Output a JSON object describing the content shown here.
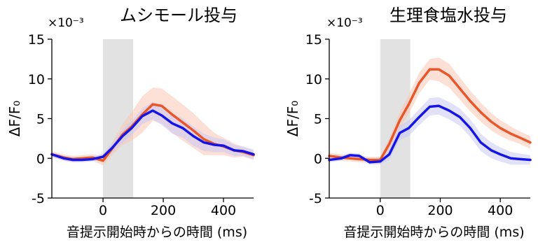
{
  "chart_data": [
    {
      "type": "line",
      "title": "ムシモール投与",
      "xlabel": "音提示開始時からの時間 (ms)",
      "ylabel": "ΔF/F₀",
      "yscale_label": "×10⁻³",
      "xlim": [
        -170,
        500
      ],
      "ylim": [
        -5,
        15
      ],
      "xticks": [
        0,
        200,
        400
      ],
      "yticks": [
        -5,
        0,
        5,
        10,
        15
      ],
      "stimulus_window": [
        0,
        100
      ],
      "grid": false,
      "series": [
        {
          "color": "#e8572a",
          "band_color": "#f9c7b5",
          "x": [
            -170,
            -130,
            -100,
            -70,
            -35,
            0,
            30,
            65,
            95,
            130,
            165,
            195,
            230,
            265,
            300,
            335,
            370,
            400,
            435,
            465,
            500
          ],
          "y": [
            0.5,
            0.1,
            -0.1,
            0.0,
            0.1,
            -0.3,
            1.2,
            3.0,
            4.0,
            5.5,
            6.8,
            6.6,
            5.5,
            4.5,
            3.5,
            2.4,
            1.8,
            1.5,
            1.0,
            0.8,
            0.4
          ],
          "upper": [
            0.9,
            0.5,
            0.3,
            0.4,
            0.5,
            0.3,
            2.0,
            4.3,
            5.8,
            7.8,
            8.9,
            8.8,
            7.8,
            6.8,
            5.7,
            4.4,
            3.2,
            2.6,
            1.9,
            1.4,
            1.0
          ],
          "lower": [
            0.1,
            -0.3,
            -0.5,
            -0.4,
            -0.3,
            -0.9,
            0.4,
            1.7,
            2.2,
            3.2,
            4.7,
            4.4,
            3.2,
            2.2,
            1.3,
            0.4,
            0.4,
            0.4,
            0.1,
            0.2,
            -0.2
          ]
        },
        {
          "color": "#1414e6",
          "band_color": "#c9c9f5",
          "x": [
            -170,
            -130,
            -100,
            -70,
            -35,
            0,
            30,
            65,
            95,
            130,
            165,
            195,
            230,
            265,
            300,
            335,
            370,
            400,
            435,
            465,
            500
          ],
          "y": [
            0.5,
            0.0,
            -0.2,
            -0.2,
            -0.1,
            0.2,
            1.3,
            2.8,
            3.8,
            5.3,
            6.0,
            5.4,
            4.4,
            3.8,
            2.8,
            2.0,
            1.7,
            1.6,
            1.0,
            0.9,
            0.5
          ],
          "upper": [
            0.8,
            0.3,
            0.1,
            0.1,
            0.2,
            0.6,
            1.9,
            3.6,
            4.7,
            6.3,
            7.1,
            6.6,
            5.7,
            5.0,
            4.0,
            3.1,
            2.6,
            2.4,
            1.7,
            1.5,
            1.1
          ],
          "lower": [
            0.2,
            -0.3,
            -0.5,
            -0.5,
            -0.4,
            -0.2,
            0.7,
            2.0,
            2.9,
            4.3,
            4.9,
            4.2,
            3.1,
            2.6,
            1.6,
            0.9,
            0.8,
            0.8,
            0.3,
            0.3,
            -0.1
          ]
        }
      ]
    },
    {
      "type": "line",
      "title": "生理食塩水投与",
      "xlabel": "音提示開始時からの時間 (ms)",
      "ylabel": "ΔF/F₀",
      "yscale_label": "×10⁻³",
      "xlim": [
        -170,
        500
      ],
      "ylim": [
        -5,
        15
      ],
      "xticks": [
        0,
        200,
        400
      ],
      "yticks": [
        -5,
        0,
        5,
        10,
        15
      ],
      "stimulus_window": [
        0,
        100
      ],
      "grid": false,
      "series": [
        {
          "color": "#e8572a",
          "band_color": "#f9c7b5",
          "x": [
            -170,
            -130,
            -100,
            -70,
            -35,
            0,
            30,
            65,
            95,
            130,
            165,
            195,
            230,
            265,
            300,
            335,
            370,
            400,
            435,
            465,
            500
          ],
          "y": [
            0.3,
            0.1,
            0.0,
            -0.1,
            -0.2,
            -0.2,
            1.8,
            4.8,
            6.8,
            9.5,
            11.2,
            11.2,
            10.4,
            8.8,
            7.2,
            5.8,
            4.6,
            3.8,
            3.1,
            2.6,
            2.0
          ],
          "upper": [
            0.7,
            0.5,
            0.4,
            0.3,
            0.2,
            0.2,
            2.5,
            5.8,
            8.0,
            10.8,
            12.5,
            12.7,
            11.9,
            10.2,
            8.5,
            7.0,
            5.7,
            4.8,
            4.0,
            3.4,
            2.8
          ],
          "lower": [
            -0.1,
            -0.3,
            -0.4,
            -0.5,
            -0.6,
            -0.6,
            1.1,
            3.8,
            5.6,
            8.2,
            9.9,
            9.7,
            8.9,
            7.4,
            5.9,
            4.6,
            3.5,
            2.8,
            2.2,
            1.8,
            1.2
          ]
        },
        {
          "color": "#1414e6",
          "band_color": "#c9c9f5",
          "x": [
            -170,
            -130,
            -100,
            -70,
            -35,
            0,
            30,
            65,
            95,
            130,
            165,
            195,
            230,
            265,
            300,
            335,
            370,
            400,
            435,
            465,
            500
          ],
          "y": [
            -0.2,
            0.0,
            0.4,
            0.3,
            -0.5,
            -0.4,
            0.5,
            3.2,
            3.8,
            5.2,
            6.5,
            6.6,
            6.0,
            5.2,
            3.8,
            2.0,
            1.0,
            0.5,
            0.0,
            -0.1,
            -0.2
          ],
          "upper": [
            0.1,
            0.3,
            0.7,
            0.6,
            -0.2,
            0.0,
            1.2,
            4.1,
            4.8,
            6.2,
            7.6,
            7.7,
            7.1,
            6.3,
            4.9,
            3.1,
            2.0,
            1.4,
            0.8,
            0.6,
            0.4
          ],
          "lower": [
            -0.5,
            -0.3,
            0.1,
            0.0,
            -0.8,
            -0.8,
            -0.2,
            2.3,
            2.8,
            4.2,
            5.4,
            5.5,
            4.9,
            4.1,
            2.7,
            0.9,
            0.0,
            -0.4,
            -0.8,
            -0.8,
            -0.8
          ]
        }
      ]
    }
  ]
}
